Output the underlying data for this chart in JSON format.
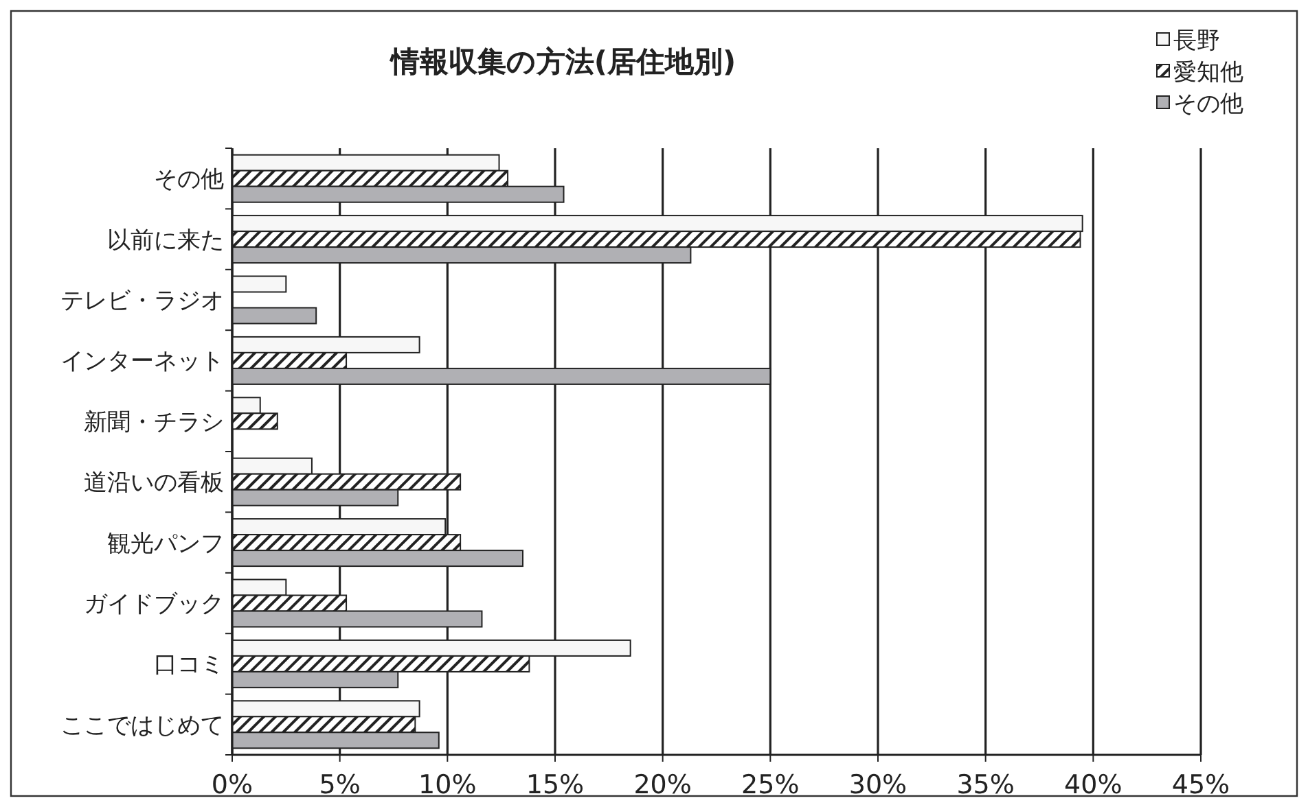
{
  "chart_data": {
    "type": "bar",
    "orientation": "horizontal",
    "title": "情報収集の方法(居住地別)",
    "categories": [
      "その他",
      "以前に来た",
      "テレビ・ラジオ",
      "インターネット",
      "新聞・チラシ",
      "道沿いの看板",
      "観光パンフ",
      "ガイドブック",
      "口コミ",
      "ここではじめて"
    ],
    "series": [
      {
        "name": "長野",
        "color": "#f7f7f7",
        "values": [
          12.4,
          39.5,
          2.5,
          8.7,
          1.3,
          3.7,
          9.9,
          2.5,
          18.5,
          8.7
        ]
      },
      {
        "name": "愛知他",
        "color": "#222222",
        "values": [
          12.8,
          39.4,
          0,
          5.3,
          2.1,
          10.6,
          10.6,
          5.3,
          13.8,
          8.5
        ]
      },
      {
        "name": "その他",
        "color": "#b0b0b4",
        "values": [
          15.4,
          21.3,
          3.9,
          25.0,
          0,
          7.7,
          13.5,
          11.6,
          7.7,
          9.6
        ]
      }
    ],
    "xlim": [
      0,
      45
    ],
    "xticks": [
      {
        "value": 0,
        "label": "0%"
      },
      {
        "value": 5,
        "label": "5%"
      },
      {
        "value": 10,
        "label": "10%"
      },
      {
        "value": 15,
        "label": "15%"
      },
      {
        "value": 20,
        "label": "20%"
      },
      {
        "value": 25,
        "label": "25%"
      },
      {
        "value": 30,
        "label": "30%"
      },
      {
        "value": 35,
        "label": "35%"
      },
      {
        "value": 40,
        "label": "40%"
      },
      {
        "value": 45,
        "label": "45%"
      }
    ],
    "grid": "x",
    "legend": "top right"
  }
}
